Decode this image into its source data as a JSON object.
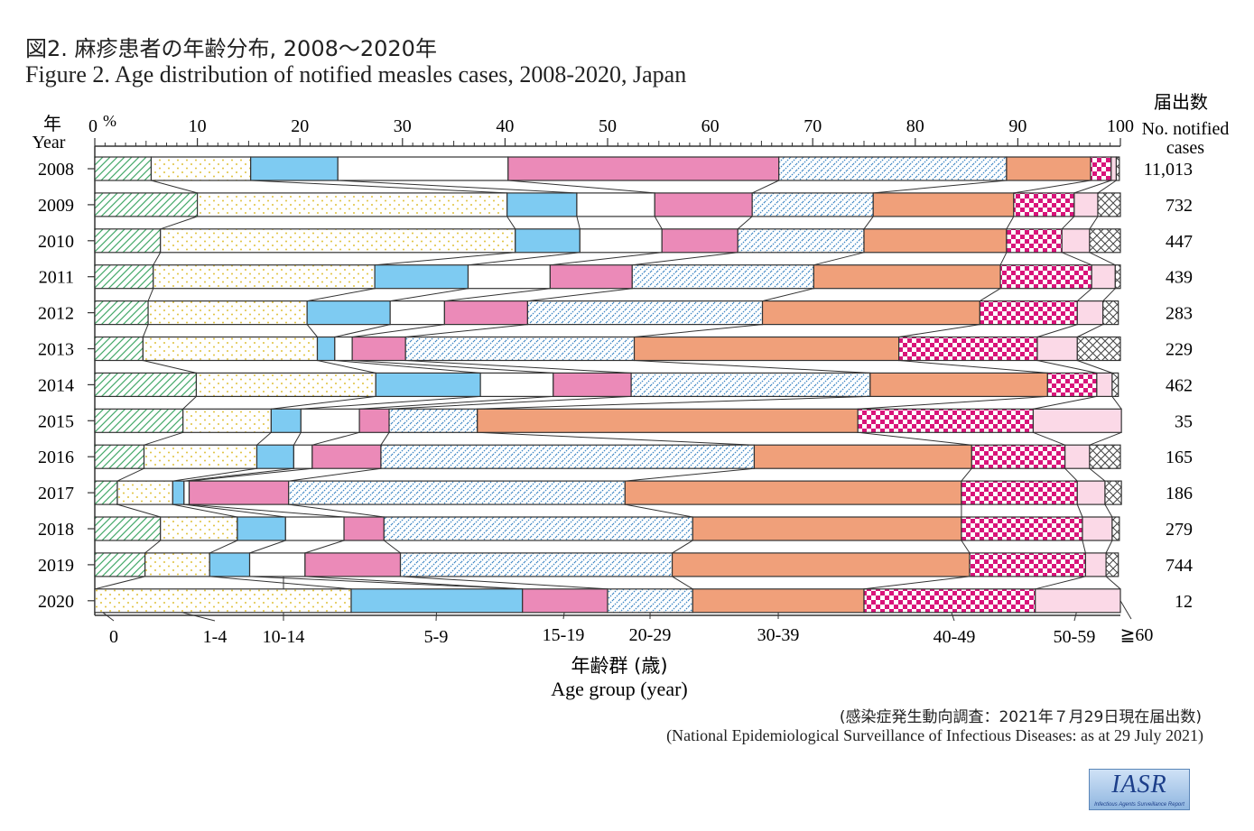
{
  "title_jp": "図2. 麻疹患者の年齢分布, 2008〜2020年",
  "title_en": "Figure 2. Age distribution of notified measles cases, 2008-2020, Japan",
  "source_jp": "(感染症発生動向調査：2021年７月29日現在届出数)",
  "source_en": "(National Epidemiological Surveillance of Infectious Diseases: as at 29 July 2021)",
  "logo": {
    "text": "IASR",
    "subtext": "Infectious Agents Surveillance Report"
  },
  "chart_data": {
    "type": "bar",
    "orientation": "horizontal",
    "stacked": "100%",
    "xlim": [
      0,
      100
    ],
    "x_ticks": [
      0,
      10,
      20,
      30,
      40,
      50,
      60,
      70,
      80,
      90,
      100
    ],
    "x_unit": "%",
    "year_header_jp": "年",
    "year_header_en": "Year",
    "count_header_jp": "届出数",
    "count_header_en": "No. notified cases",
    "xlabel_jp": "年齢群 (歳)",
    "xlabel_en": "Age group (year)",
    "age_groups": [
      "0",
      "1-4",
      "5-9",
      "10-14",
      "15-19",
      "20-29",
      "30-39",
      "40-49",
      "50-59",
      "≧60"
    ],
    "categories": [
      "2008",
      "2009",
      "2010",
      "2011",
      "2012",
      "2013",
      "2014",
      "2015",
      "2016",
      "2017",
      "2018",
      "2019",
      "2020"
    ],
    "notified_cases": [
      "11,013",
      "732",
      "447",
      "439",
      "283",
      "229",
      "462",
      "35",
      "165",
      "186",
      "279",
      "744",
      "12"
    ],
    "series": [
      {
        "name": "0",
        "values": [
          5.5,
          10.0,
          6.4,
          5.7,
          5.2,
          4.7,
          9.9,
          8.6,
          4.8,
          2.2,
          6.4,
          4.9,
          0
        ]
      },
      {
        "name": "1-4",
        "values": [
          9.7,
          30.2,
          34.6,
          21.6,
          15.5,
          17.0,
          17.5,
          8.6,
          11.0,
          5.4,
          7.5,
          6.3,
          25.0
        ]
      },
      {
        "name": "5-9",
        "values": [
          8.5,
          6.8,
          6.3,
          9.1,
          8.1,
          1.7,
          10.2,
          2.9,
          3.6,
          1.1,
          4.7,
          3.9,
          16.7
        ]
      },
      {
        "name": "10-14",
        "values": [
          16.6,
          7.6,
          8.0,
          8.0,
          5.3,
          1.7,
          7.1,
          5.7,
          1.8,
          0.5,
          5.7,
          5.4,
          0
        ]
      },
      {
        "name": "15-19",
        "values": [
          26.4,
          9.5,
          7.4,
          8.0,
          8.1,
          5.2,
          7.6,
          2.9,
          6.7,
          9.7,
          3.9,
          9.3,
          8.3
        ]
      },
      {
        "name": "20-29",
        "values": [
          22.2,
          11.8,
          12.3,
          17.7,
          22.9,
          22.3,
          23.3,
          8.6,
          36.4,
          32.8,
          30.1,
          26.5,
          8.3
        ]
      },
      {
        "name": "30-39",
        "values": [
          8.2,
          13.7,
          13.9,
          18.2,
          21.2,
          25.8,
          17.3,
          37.1,
          21.2,
          32.8,
          26.2,
          29.0,
          16.7
        ]
      },
      {
        "name": "40-49",
        "values": [
          2.0,
          5.9,
          5.4,
          8.9,
          9.5,
          13.5,
          4.8,
          17.1,
          9.1,
          11.3,
          11.8,
          11.3,
          16.7
        ]
      },
      {
        "name": "50-59",
        "values": [
          0.5,
          2.3,
          2.7,
          2.3,
          2.5,
          3.9,
          1.5,
          8.6,
          2.4,
          2.7,
          2.9,
          2.0,
          8.3
        ]
      },
      {
        "name": "≧60",
        "values": [
          0.3,
          2.2,
          3.0,
          0.5,
          1.5,
          4.2,
          0.6,
          0,
          3.0,
          1.6,
          0.7,
          1.2,
          0
        ]
      }
    ],
    "colors": {
      "0": "#5cb878",
      "1-4": "#e6d35a",
      "5-9": "#7ecbf2",
      "10-14": "#ffffff",
      "15-19": "#eb8ab8",
      "20-29": "#3d86c4",
      "30-39": "#f0a07a",
      "40-49": "#d9147a",
      "50-59": "#fbd9e7",
      "≧60": "#555555"
    },
    "grid": false,
    "legend": "labels below axis at 2020 bar"
  }
}
